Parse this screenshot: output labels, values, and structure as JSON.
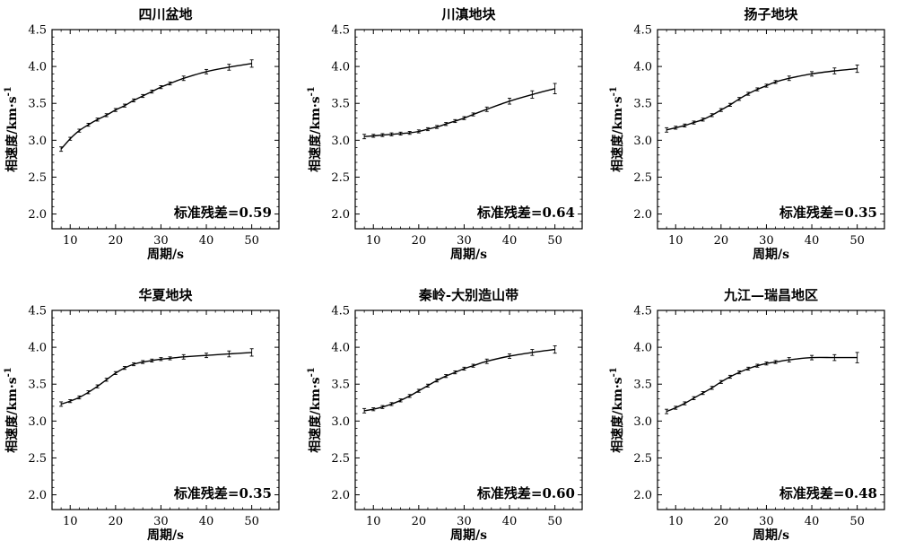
{
  "chart_data": [
    {
      "type": "line",
      "title": "四川盆地",
      "xlabel": "周期/s",
      "ylabel_main": "相速度/km·s",
      "ylabel_sup": "-1",
      "xlim": [
        6,
        56
      ],
      "ylim": [
        1.8,
        4.5
      ],
      "xticks": [
        10,
        20,
        30,
        40,
        50
      ],
      "yticks": [
        2.0,
        2.5,
        3.0,
        3.5,
        4.0,
        4.5
      ],
      "annotation": "标准残差=0.59",
      "series": [
        {
          "x": [
            8,
            10,
            12,
            14,
            16,
            18,
            20,
            22,
            24,
            26,
            28,
            30,
            32,
            35,
            40,
            45,
            50
          ],
          "values": [
            2.88,
            3.02,
            3.13,
            3.21,
            3.28,
            3.34,
            3.41,
            3.47,
            3.54,
            3.6,
            3.66,
            3.72,
            3.77,
            3.84,
            3.93,
            3.99,
            4.04
          ],
          "errors": [
            0.03,
            0.02,
            0.02,
            0.02,
            0.02,
            0.02,
            0.02,
            0.02,
            0.02,
            0.02,
            0.02,
            0.02,
            0.02,
            0.03,
            0.03,
            0.04,
            0.05
          ]
        }
      ]
    },
    {
      "type": "line",
      "title": "川滇地块",
      "xlabel": "周期/s",
      "ylabel_main": "相速度/km·s",
      "ylabel_sup": "-1",
      "xlim": [
        6,
        56
      ],
      "ylim": [
        1.8,
        4.5
      ],
      "xticks": [
        10,
        20,
        30,
        40,
        50
      ],
      "yticks": [
        2.0,
        2.5,
        3.0,
        3.5,
        4.0,
        4.5
      ],
      "annotation": "标准残差=0.64",
      "series": [
        {
          "x": [
            8,
            10,
            12,
            14,
            16,
            18,
            20,
            22,
            24,
            26,
            28,
            30,
            32,
            35,
            40,
            45,
            50
          ],
          "values": [
            3.05,
            3.06,
            3.07,
            3.08,
            3.09,
            3.1,
            3.12,
            3.15,
            3.18,
            3.22,
            3.26,
            3.3,
            3.35,
            3.42,
            3.53,
            3.62,
            3.7
          ],
          "errors": [
            0.03,
            0.02,
            0.02,
            0.02,
            0.02,
            0.02,
            0.02,
            0.02,
            0.02,
            0.02,
            0.02,
            0.02,
            0.02,
            0.03,
            0.04,
            0.05,
            0.07
          ]
        }
      ]
    },
    {
      "type": "line",
      "title": "扬子地块",
      "xlabel": "周期/s",
      "ylabel_main": "相速度/km·s",
      "ylabel_sup": "-1",
      "xlim": [
        6,
        56
      ],
      "ylim": [
        1.8,
        4.5
      ],
      "xticks": [
        10,
        20,
        30,
        40,
        50
      ],
      "yticks": [
        2.0,
        2.5,
        3.0,
        3.5,
        4.0,
        4.5
      ],
      "annotation": "标准残差=0.35",
      "series": [
        {
          "x": [
            8,
            10,
            12,
            14,
            16,
            18,
            20,
            22,
            24,
            26,
            28,
            30,
            32,
            35,
            40,
            45,
            50
          ],
          "values": [
            3.14,
            3.17,
            3.2,
            3.24,
            3.28,
            3.34,
            3.41,
            3.48,
            3.56,
            3.63,
            3.69,
            3.74,
            3.79,
            3.84,
            3.9,
            3.94,
            3.97
          ],
          "errors": [
            0.03,
            0.02,
            0.02,
            0.02,
            0.02,
            0.02,
            0.02,
            0.02,
            0.02,
            0.02,
            0.02,
            0.02,
            0.02,
            0.03,
            0.03,
            0.04,
            0.05
          ]
        }
      ]
    },
    {
      "type": "line",
      "title": "华夏地块",
      "xlabel": "周期/s",
      "ylabel_main": "相速度/km·s",
      "ylabel_sup": "-1",
      "xlim": [
        6,
        56
      ],
      "ylim": [
        1.8,
        4.5
      ],
      "xticks": [
        10,
        20,
        30,
        40,
        50
      ],
      "yticks": [
        2.0,
        2.5,
        3.0,
        3.5,
        4.0,
        4.5
      ],
      "annotation": "标准残差=0.35",
      "series": [
        {
          "x": [
            8,
            10,
            12,
            14,
            16,
            18,
            20,
            22,
            24,
            26,
            28,
            30,
            32,
            35,
            40,
            45,
            50
          ],
          "values": [
            3.23,
            3.27,
            3.32,
            3.39,
            3.47,
            3.56,
            3.65,
            3.72,
            3.77,
            3.8,
            3.82,
            3.84,
            3.85,
            3.87,
            3.89,
            3.91,
            3.93
          ],
          "errors": [
            0.03,
            0.02,
            0.02,
            0.02,
            0.02,
            0.02,
            0.02,
            0.02,
            0.02,
            0.02,
            0.02,
            0.02,
            0.02,
            0.03,
            0.03,
            0.04,
            0.05
          ]
        }
      ]
    },
    {
      "type": "line",
      "title": "秦岭-大别造山带",
      "xlabel": "周期/s",
      "ylabel_main": "相速度/km·s",
      "ylabel_sup": "-1",
      "xlim": [
        6,
        56
      ],
      "ylim": [
        1.8,
        4.5
      ],
      "xticks": [
        10,
        20,
        30,
        40,
        50
      ],
      "yticks": [
        2.0,
        2.5,
        3.0,
        3.5,
        4.0,
        4.5
      ],
      "annotation": "标准残差=0.60",
      "series": [
        {
          "x": [
            8,
            10,
            12,
            14,
            16,
            18,
            20,
            22,
            24,
            26,
            28,
            30,
            32,
            35,
            40,
            45,
            50
          ],
          "values": [
            3.14,
            3.16,
            3.19,
            3.23,
            3.28,
            3.34,
            3.41,
            3.48,
            3.55,
            3.61,
            3.66,
            3.71,
            3.75,
            3.81,
            3.88,
            3.93,
            3.97
          ],
          "errors": [
            0.03,
            0.02,
            0.02,
            0.02,
            0.02,
            0.02,
            0.02,
            0.02,
            0.02,
            0.02,
            0.02,
            0.02,
            0.02,
            0.03,
            0.03,
            0.04,
            0.05
          ]
        }
      ]
    },
    {
      "type": "line",
      "title": "九江—瑞昌地区",
      "xlabel": "周期/s",
      "ylabel_main": "相速度/km·s",
      "ylabel_sup": "-1",
      "xlim": [
        6,
        56
      ],
      "ylim": [
        1.8,
        4.5
      ],
      "xticks": [
        10,
        20,
        30,
        40,
        50
      ],
      "yticks": [
        2.0,
        2.5,
        3.0,
        3.5,
        4.0,
        4.5
      ],
      "annotation": "标准残差=0.48",
      "series": [
        {
          "x": [
            8,
            10,
            12,
            14,
            16,
            18,
            20,
            22,
            24,
            26,
            28,
            30,
            32,
            35,
            40,
            45,
            50
          ],
          "values": [
            3.13,
            3.18,
            3.24,
            3.31,
            3.38,
            3.45,
            3.53,
            3.6,
            3.66,
            3.71,
            3.75,
            3.78,
            3.8,
            3.83,
            3.86,
            3.86,
            3.86
          ],
          "errors": [
            0.03,
            0.02,
            0.02,
            0.02,
            0.02,
            0.02,
            0.02,
            0.02,
            0.02,
            0.02,
            0.02,
            0.02,
            0.02,
            0.03,
            0.03,
            0.04,
            0.07
          ]
        }
      ]
    }
  ]
}
